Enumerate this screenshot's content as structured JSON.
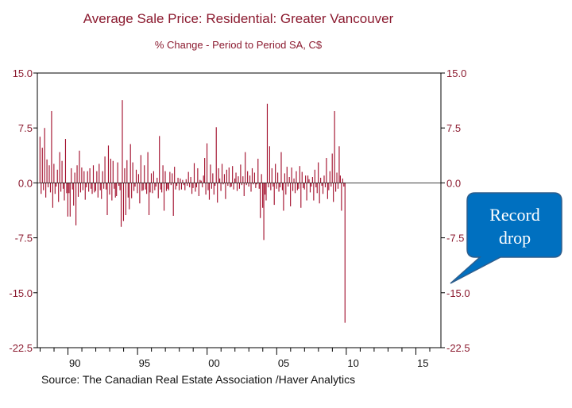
{
  "chart_data": {
    "type": "bar",
    "title": "Average Sale Price: Residential: Greater Vancouver",
    "subtitle": "% Change - Period to Period    SA, C$",
    "ylim": [
      -22.5,
      15.0
    ],
    "y_ticks": [
      "15.0",
      "7.5",
      "0.0",
      "-7.5",
      "-15.0",
      "-22.5"
    ],
    "x_tick_labels": [
      "90",
      "95",
      "00",
      "05",
      "10",
      "15"
    ],
    "x_tick_years": [
      1990,
      1995,
      2000,
      2005,
      2010,
      2015
    ],
    "x_range": [
      1987.8,
      2016.8
    ],
    "series": [
      {
        "start_year": 1988.0,
        "frequency": "monthly",
        "values": [
          6.3,
          -1.5,
          4.8,
          -1.0,
          7.5,
          -2.0,
          3.2,
          -0.6,
          2.4,
          -1.3,
          9.8,
          -3.4,
          2.6,
          -1.5,
          -0.5,
          1.8,
          -2.6,
          4.2,
          -1.2,
          3.0,
          -0.8,
          -2.4,
          6.0,
          -1.4,
          -4.6,
          -1.4,
          -4.6,
          2.0,
          -0.9,
          -3.1,
          1.4,
          -5.8,
          2.4,
          -1.9,
          4.4,
          -1.3,
          2.1,
          -1.0,
          1.6,
          -2.3,
          -0.6,
          1.6,
          -1.2,
          2.0,
          -0.8,
          -1.5,
          2.4,
          -1.3,
          -1.1,
          1.6,
          -2.0,
          2.6,
          -1.0,
          -2.2,
          1.6,
          -0.8,
          3.6,
          -0.9,
          -4.4,
          5.1,
          -1.6,
          3.3,
          -2.4,
          3.0,
          -0.8,
          -2.0,
          -1.8,
          2.8,
          -0.4,
          -1.0,
          -6.0,
          11.3,
          -5.2,
          2.0,
          -4.4,
          3.1,
          -2.0,
          -3.6,
          5.3,
          -2.1,
          2.8,
          -1.1,
          -0.5,
          1.8,
          -1.4,
          1.2,
          -2.8,
          3.8,
          -1.1,
          -1.0,
          2.4,
          -0.9,
          -1.5,
          4.2,
          -4.4,
          -1.3,
          1.3,
          -1.4,
          1.6,
          -1.0,
          -0.5,
          0.7,
          -2.1,
          6.4,
          -0.9,
          -1.3,
          2.4,
          -3.8,
          1.6,
          -1.1,
          -0.8,
          -1.0,
          1.5,
          -0.3,
          1.3,
          -4.5,
          2.2,
          -0.9,
          -0.4,
          0.7,
          -1.0,
          0.6,
          -0.9,
          0.4,
          -0.3,
          -1.0,
          0.5,
          -0.4,
          1.5,
          -0.6,
          0.8,
          -1.5,
          -0.7,
          2.7,
          -1.2,
          -0.6,
          2.0,
          -1.8,
          0.4,
          0.3,
          -0.6,
          1.0,
          3.4,
          -1.6,
          5.4,
          -1.0,
          -2.3,
          2.5,
          -0.8,
          1.3,
          -1.6,
          -0.4,
          7.6,
          -2.7,
          2.0,
          0.6,
          -1.1,
          2.6,
          -0.2,
          1.2,
          -2.2,
          1.8,
          -0.4,
          2.1,
          -0.6,
          -0.5,
          2.3,
          -0.9,
          0.6,
          1.4,
          -1.1,
          0.9,
          -0.8,
          2.5,
          -0.3,
          0.9,
          -1.8,
          4.2,
          -0.3,
          1.6,
          -0.5,
          1.0,
          -1.2,
          2.0,
          -0.2,
          1.4,
          -0.7,
          -0.2,
          3.3,
          -0.8,
          -4.8,
          1.2,
          -3.4,
          -7.8,
          -1.6,
          -2.4,
          10.8,
          -0.6,
          5.0,
          -1.0,
          2.0,
          -0.5,
          -3.0,
          2.6,
          -0.8,
          1.4,
          -1.2,
          -0.6,
          4.2,
          -1.0,
          -3.8,
          1.3,
          -1.6,
          2.2,
          -0.5,
          0.8,
          -3.2,
          2.1,
          -1.1,
          0.6,
          -1.4,
          1.6,
          -1.0,
          -0.8,
          2.3,
          -3.4,
          1.5,
          -0.7,
          -0.9,
          1.0,
          -2.4,
          1.0,
          0.5,
          -1.3,
          -0.5,
          0.8,
          -2.4,
          1.8,
          -0.6,
          -1.4,
          2.8,
          -2.8,
          0.7,
          -0.4,
          -1.5,
          1.0,
          -0.6,
          3.4,
          -2.2,
          -1.0,
          1.6,
          -0.5,
          4.0,
          -2.6,
          9.8,
          -1.2,
          1.4,
          -0.8,
          5.0,
          1.0,
          -3.8,
          0.6,
          -0.5,
          -19.1
        ]
      }
    ],
    "annotation": [
      "Record",
      "drop"
    ],
    "source": "Source:  The Canadian Real Estate Association /Haver Analytics",
    "bar_color": "#a3112e",
    "text_color": "#8b1a2f",
    "callout_color": "#0070c0",
    "grid": false
  }
}
